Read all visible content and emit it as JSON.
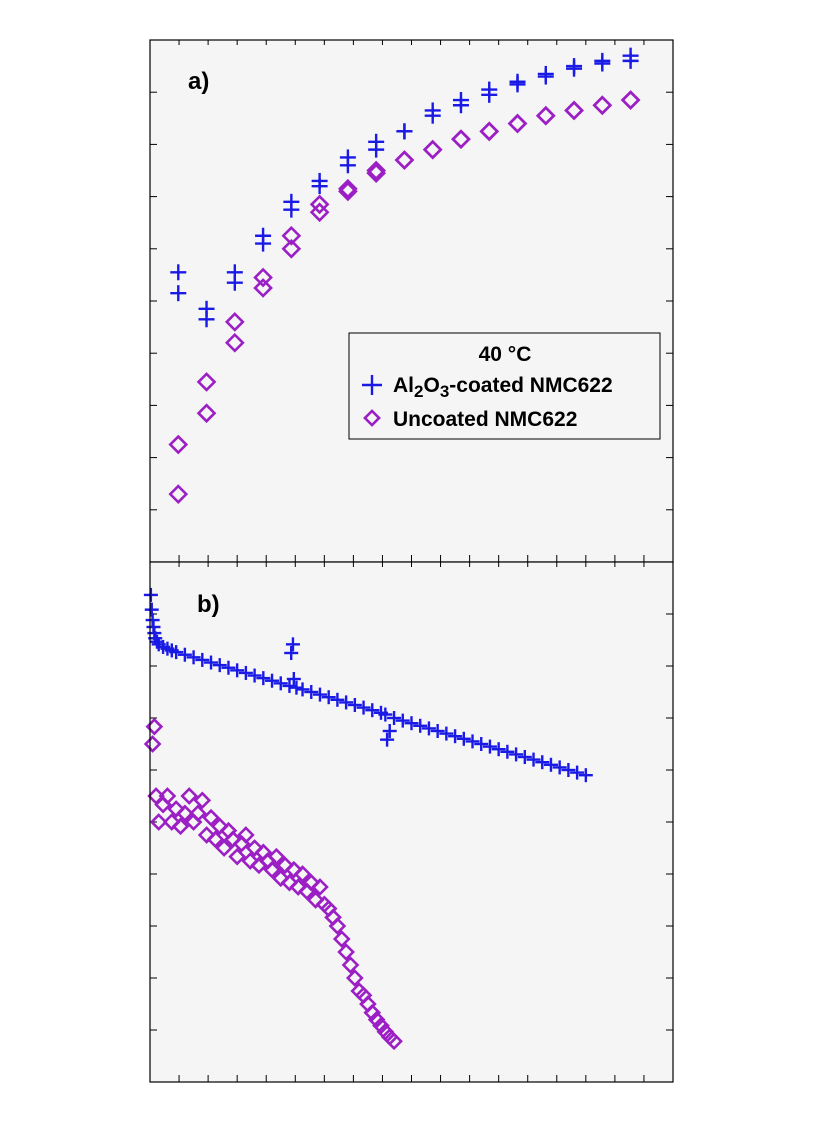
{
  "colors": {
    "plot_background": "#f5f5f5",
    "axis": "#000000",
    "coated": "#1a1ae6",
    "uncoated": "#9b1fc4"
  },
  "markers": {
    "coated": "plus",
    "uncoated": "diamond"
  },
  "chart_data": [
    {
      "type": "scatter",
      "panel_label": "a)",
      "title": "",
      "xlabel": "",
      "ylabel": "",
      "xlim": [
        0,
        18.5
      ],
      "ylim": [
        0,
        10
      ],
      "grid": false,
      "legend": {
        "placement": "middle-right",
        "title": "40 °C",
        "entries": [
          {
            "series": "coated",
            "parts": [
              {
                "text": "Al",
                "sub": false
              },
              {
                "text": "2",
                "sub": true
              },
              {
                "text": "O",
                "sub": false
              },
              {
                "text": "3",
                "sub": true
              },
              {
                "text": "-coated NMC622",
                "sub": false
              }
            ]
          },
          {
            "series": "uncoated",
            "parts": [
              {
                "text": "Uncoated NMC622",
                "sub": false
              }
            ]
          }
        ]
      },
      "series": [
        {
          "key": "coated",
          "x": [
            1,
            1,
            2,
            2,
            3,
            3,
            4,
            4,
            5,
            5,
            6,
            6,
            7,
            7,
            8,
            8,
            9,
            9,
            10,
            10,
            11,
            11,
            12,
            12,
            13,
            13,
            14,
            14,
            15,
            15,
            16,
            16,
            17,
            17
          ],
          "y": [
            5.55,
            5.15,
            4.85,
            4.65,
            5.55,
            5.35,
            6.25,
            6.1,
            6.9,
            6.75,
            7.3,
            7.2,
            7.75,
            7.6,
            8.05,
            7.9,
            8.25,
            8.25,
            8.65,
            8.55,
            8.85,
            8.75,
            9.05,
            8.95,
            9.2,
            9.15,
            9.35,
            9.3,
            9.5,
            9.45,
            9.6,
            9.55,
            9.7,
            9.6
          ]
        },
        {
          "key": "uncoated",
          "x": [
            1,
            1,
            2,
            2,
            3,
            3,
            4,
            4,
            5,
            5,
            6,
            6,
            7,
            7,
            8,
            8,
            9,
            9,
            10,
            10,
            11,
            11,
            12,
            12,
            13,
            13,
            14,
            14,
            15,
            15,
            16,
            16,
            17,
            17
          ],
          "y": [
            2.25,
            1.3,
            3.45,
            2.85,
            4.6,
            4.2,
            5.45,
            5.25,
            6.25,
            6.0,
            6.85,
            6.7,
            7.15,
            7.1,
            7.5,
            7.45,
            7.7,
            7.7,
            7.9,
            7.9,
            8.1,
            8.1,
            8.25,
            8.25,
            8.4,
            8.4,
            8.55,
            8.55,
            8.65,
            8.65,
            8.75,
            8.75,
            8.85,
            8.85
          ]
        }
      ]
    },
    {
      "type": "scatter",
      "panel_label": "b)",
      "title": "",
      "xlabel": "",
      "ylabel": "",
      "xlim": [
        0,
        600
      ],
      "ylim": [
        0,
        6
      ],
      "grid": false,
      "series": [
        {
          "key": "coated",
          "x": [
            1,
            2,
            3,
            4,
            5,
            6,
            8,
            10,
            15,
            20,
            25,
            30,
            40,
            50,
            60,
            70,
            80,
            90,
            100,
            110,
            120,
            130,
            140,
            150,
            160,
            162,
            164,
            165,
            168,
            175,
            185,
            195,
            205,
            215,
            225,
            235,
            245,
            255,
            265,
            270,
            272,
            275,
            280,
            290,
            300,
            310,
            320,
            330,
            340,
            350,
            360,
            370,
            380,
            390,
            400,
            410,
            420,
            430,
            440,
            450,
            460,
            470,
            480,
            490,
            500
          ],
          "y": [
            5.62,
            5.45,
            5.33,
            5.25,
            5.18,
            5.12,
            5.08,
            5.05,
            5.02,
            5.0,
            4.98,
            4.96,
            4.93,
            4.9,
            4.87,
            4.84,
            4.81,
            4.78,
            4.75,
            4.72,
            4.69,
            4.66,
            4.63,
            4.6,
            4.57,
            4.95,
            5.05,
            4.65,
            4.55,
            4.53,
            4.5,
            4.47,
            4.44,
            4.41,
            4.38,
            4.35,
            4.32,
            4.29,
            4.26,
            4.24,
            3.95,
            4.05,
            4.2,
            4.17,
            4.14,
            4.11,
            4.08,
            4.05,
            4.02,
            3.99,
            3.96,
            3.93,
            3.9,
            3.87,
            3.84,
            3.81,
            3.78,
            3.75,
            3.72,
            3.69,
            3.66,
            3.63,
            3.6,
            3.57,
            3.54
          ]
        },
        {
          "key": "uncoated",
          "x": [
            3,
            5,
            7,
            10,
            15,
            20,
            25,
            30,
            35,
            40,
            45,
            50,
            55,
            60,
            65,
            70,
            75,
            80,
            85,
            90,
            95,
            100,
            105,
            110,
            115,
            120,
            125,
            130,
            135,
            140,
            145,
            150,
            155,
            160,
            165,
            170,
            175,
            180,
            185,
            190,
            195,
            200,
            205,
            210,
            215,
            220,
            225,
            230,
            235,
            240,
            245,
            250,
            255,
            260,
            265,
            270,
            275,
            280
          ],
          "y": [
            3.9,
            4.1,
            3.3,
            3.0,
            3.2,
            3.3,
            3.0,
            3.15,
            2.95,
            3.1,
            3.3,
            3.0,
            3.1,
            3.25,
            2.85,
            3.05,
            2.8,
            2.95,
            2.7,
            2.9,
            2.8,
            2.6,
            2.75,
            2.85,
            2.55,
            2.7,
            2.5,
            2.65,
            2.55,
            2.45,
            2.6,
            2.35,
            2.5,
            2.3,
            2.45,
            2.25,
            2.4,
            2.2,
            2.3,
            2.1,
            2.25,
            2.05,
            2.0,
            1.9,
            1.8,
            1.65,
            1.5,
            1.35,
            1.2,
            1.05,
            1.0,
            0.9,
            0.8,
            0.72,
            0.65,
            0.58,
            0.52,
            0.47
          ]
        }
      ]
    }
  ]
}
